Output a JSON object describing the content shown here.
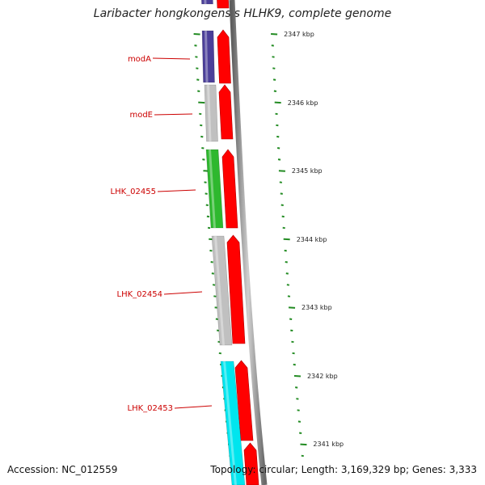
{
  "title": "Laribacter hongkongensis HLHK9, complete genome",
  "accession_label": "Accession: NC_012559",
  "topology_label": "Topology: circular; Length: 3,169,329 bp; Genes: 3,333",
  "colors": {
    "backbone": "#8a8a8a",
    "cds_forward": "#ff0000",
    "tick_green": "#228b22",
    "label_red": "#cc0000"
  },
  "scale_labels": [
    "2347 kbp",
    "2346 kbp",
    "2345 kbp",
    "2344 kbp",
    "2343 kbp",
    "2342 kbp",
    "2341 kbp"
  ],
  "genes": [
    {
      "name": "",
      "color": "#4b3f99"
    },
    {
      "name": "modA",
      "color": "#4b3f99"
    },
    {
      "name": "modE",
      "color": "#c0c0c0"
    },
    {
      "name": "LHK_02455",
      "color": "#2eb82e"
    },
    {
      "name": "LHK_02454",
      "color": "#c0c0c0"
    },
    {
      "name": "LHK_02453",
      "color": "#00e5ee"
    }
  ]
}
